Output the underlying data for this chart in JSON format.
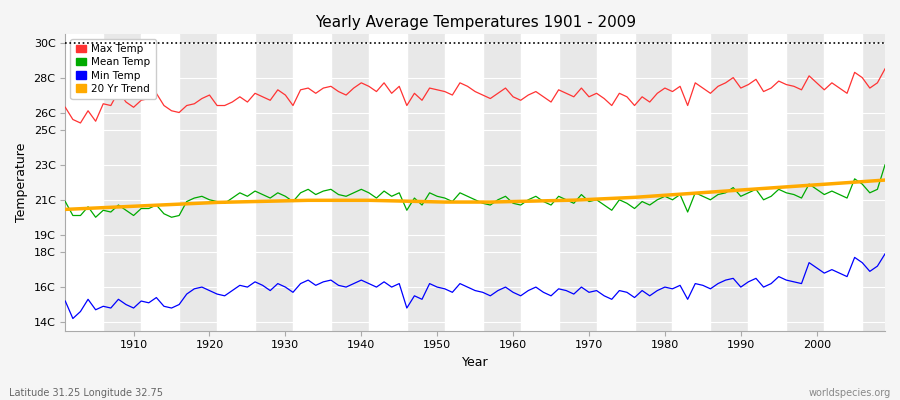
{
  "title": "Yearly Average Temperatures 1901 - 2009",
  "xlabel": "Year",
  "ylabel": "Temperature",
  "lat_lon_label": "Latitude 31.25 Longitude 32.75",
  "source_label": "worldspecies.org",
  "year_start": 1901,
  "year_end": 2009,
  "ytick_labels": [
    "14C",
    "16C",
    "18C",
    "19C",
    "21C",
    "23C",
    "25C",
    "26C",
    "28C",
    "30C"
  ],
  "ytick_values": [
    14,
    16,
    18,
    19,
    21,
    23,
    25,
    26,
    28,
    30
  ],
  "ylim": [
    13.5,
    30.5
  ],
  "xlim": [
    1901,
    2009
  ],
  "bg_color": "#f5f5f5",
  "plot_bg_color": "#e8e8e8",
  "stripe_color": "#d8d8d8",
  "grid_color": "#ffffff",
  "max_temp_color": "#ff3333",
  "mean_temp_color": "#00aa00",
  "min_temp_color": "#0000ff",
  "trend_color": "#ffaa00",
  "dashed_line_y": 30,
  "legend_labels": [
    "Max Temp",
    "Mean Temp",
    "Min Temp",
    "20 Yr Trend"
  ],
  "legend_colors": [
    "#ff3333",
    "#00aa00",
    "#0000ff",
    "#ffaa00"
  ],
  "max_temps": [
    26.3,
    25.6,
    25.4,
    26.1,
    25.5,
    26.5,
    26.4,
    27.2,
    26.6,
    26.3,
    26.7,
    26.8,
    27.1,
    26.4,
    26.1,
    26.0,
    26.4,
    26.5,
    26.8,
    27.0,
    26.4,
    26.4,
    26.6,
    26.9,
    26.6,
    27.1,
    26.9,
    26.7,
    27.3,
    27.0,
    26.4,
    27.3,
    27.4,
    27.1,
    27.4,
    27.5,
    27.2,
    27.0,
    27.4,
    27.7,
    27.5,
    27.2,
    27.7,
    27.1,
    27.5,
    26.4,
    27.1,
    26.7,
    27.4,
    27.3,
    27.2,
    27.0,
    27.7,
    27.5,
    27.2,
    27.0,
    26.8,
    27.1,
    27.4,
    26.9,
    26.7,
    27.0,
    27.2,
    26.9,
    26.6,
    27.3,
    27.1,
    26.9,
    27.4,
    26.9,
    27.1,
    26.8,
    26.4,
    27.1,
    26.9,
    26.4,
    26.9,
    26.6,
    27.1,
    27.4,
    27.2,
    27.5,
    26.4,
    27.7,
    27.4,
    27.1,
    27.5,
    27.7,
    28.0,
    27.4,
    27.6,
    27.9,
    27.2,
    27.4,
    27.8,
    27.6,
    27.5,
    27.3,
    28.1,
    27.7,
    27.3,
    27.7,
    27.4,
    27.1,
    28.3,
    28.0,
    27.4,
    27.7,
    28.5
  ],
  "mean_temps": [
    20.9,
    20.1,
    20.1,
    20.6,
    20.0,
    20.4,
    20.3,
    20.7,
    20.4,
    20.1,
    20.5,
    20.5,
    20.7,
    20.2,
    20.0,
    20.1,
    20.9,
    21.1,
    21.2,
    21.0,
    20.9,
    20.8,
    21.1,
    21.4,
    21.2,
    21.5,
    21.3,
    21.1,
    21.4,
    21.2,
    20.9,
    21.4,
    21.6,
    21.3,
    21.5,
    21.6,
    21.3,
    21.2,
    21.4,
    21.6,
    21.4,
    21.1,
    21.5,
    21.2,
    21.4,
    20.4,
    21.1,
    20.7,
    21.4,
    21.2,
    21.1,
    20.9,
    21.4,
    21.2,
    21.0,
    20.8,
    20.7,
    21.0,
    21.2,
    20.8,
    20.7,
    21.0,
    21.2,
    20.9,
    20.7,
    21.2,
    21.0,
    20.8,
    21.3,
    20.9,
    21.0,
    20.7,
    20.4,
    21.0,
    20.8,
    20.5,
    20.9,
    20.7,
    21.0,
    21.2,
    21.0,
    21.3,
    20.3,
    21.4,
    21.2,
    21.0,
    21.3,
    21.4,
    21.7,
    21.2,
    21.4,
    21.6,
    21.0,
    21.2,
    21.6,
    21.4,
    21.3,
    21.1,
    21.9,
    21.6,
    21.3,
    21.5,
    21.3,
    21.1,
    22.2,
    21.9,
    21.4,
    21.6,
    23.0
  ],
  "trend_temps": [
    20.45,
    20.47,
    20.49,
    20.51,
    20.53,
    20.55,
    20.57,
    20.59,
    20.61,
    20.63,
    20.65,
    20.67,
    20.69,
    20.71,
    20.73,
    20.75,
    20.77,
    20.79,
    20.81,
    20.83,
    20.85,
    20.86,
    20.87,
    20.88,
    20.89,
    20.9,
    20.91,
    20.92,
    20.93,
    20.94,
    20.95,
    20.96,
    20.97,
    20.97,
    20.97,
    20.97,
    20.97,
    20.97,
    20.97,
    20.97,
    20.97,
    20.96,
    20.95,
    20.94,
    20.93,
    20.92,
    20.91,
    20.9,
    20.89,
    20.88,
    20.87,
    20.87,
    20.87,
    20.87,
    20.87,
    20.87,
    20.87,
    20.88,
    20.89,
    20.9,
    20.91,
    20.92,
    20.93,
    20.94,
    20.95,
    20.96,
    20.97,
    20.98,
    21.0,
    21.02,
    21.04,
    21.06,
    21.08,
    21.1,
    21.12,
    21.14,
    21.17,
    21.2,
    21.23,
    21.26,
    21.29,
    21.32,
    21.35,
    21.38,
    21.41,
    21.44,
    21.47,
    21.5,
    21.53,
    21.56,
    21.59,
    21.62,
    21.65,
    21.68,
    21.71,
    21.74,
    21.77,
    21.8,
    21.83,
    21.86,
    21.89,
    21.92,
    21.95,
    21.98,
    22.01,
    22.04,
    22.07,
    22.1,
    22.13
  ],
  "min_temps": [
    15.2,
    14.2,
    14.6,
    15.3,
    14.7,
    14.9,
    14.8,
    15.3,
    15.0,
    14.8,
    15.2,
    15.1,
    15.4,
    14.9,
    14.8,
    15.0,
    15.6,
    15.9,
    16.0,
    15.8,
    15.6,
    15.5,
    15.8,
    16.1,
    16.0,
    16.3,
    16.1,
    15.8,
    16.2,
    16.0,
    15.7,
    16.2,
    16.4,
    16.1,
    16.3,
    16.4,
    16.1,
    16.0,
    16.2,
    16.4,
    16.2,
    16.0,
    16.3,
    16.0,
    16.2,
    14.8,
    15.5,
    15.3,
    16.2,
    16.0,
    15.9,
    15.7,
    16.2,
    16.0,
    15.8,
    15.7,
    15.5,
    15.8,
    16.0,
    15.7,
    15.5,
    15.8,
    16.0,
    15.7,
    15.5,
    15.9,
    15.8,
    15.6,
    16.0,
    15.7,
    15.8,
    15.5,
    15.3,
    15.8,
    15.7,
    15.4,
    15.8,
    15.5,
    15.8,
    16.0,
    15.9,
    16.1,
    15.3,
    16.2,
    16.1,
    15.9,
    16.2,
    16.4,
    16.5,
    16.0,
    16.3,
    16.5,
    16.0,
    16.2,
    16.6,
    16.4,
    16.3,
    16.2,
    17.4,
    17.1,
    16.8,
    17.0,
    16.8,
    16.6,
    17.7,
    17.4,
    16.9,
    17.2,
    17.9
  ]
}
